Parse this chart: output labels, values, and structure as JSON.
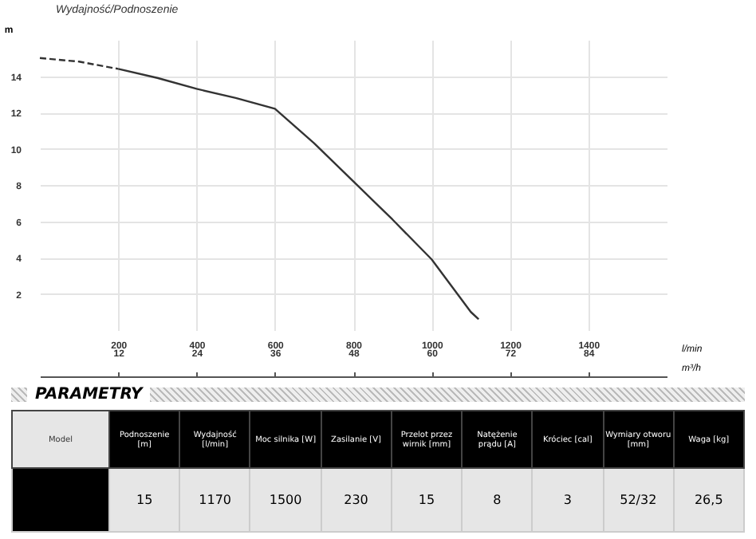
{
  "chart_data": [
    {
      "type": "line",
      "title": "Wydajność/Podnoszenie",
      "ylabel": "m",
      "xlabel": "l/min",
      "x2label": "m³/h",
      "xlim": [
        0,
        1600
      ],
      "xticks": [
        200,
        400,
        600,
        800,
        1000,
        1200,
        1400
      ],
      "x2lim": [
        0,
        96
      ],
      "x2ticks": [
        12,
        24,
        36,
        48,
        60,
        72,
        84
      ],
      "ylim": [
        0,
        16
      ],
      "yticks": [
        2,
        4,
        6,
        8,
        10,
        12,
        14
      ],
      "grid": true,
      "series": [
        {
          "color": "#333333",
          "line_style": "dashed",
          "x": [
            0,
            100,
            200
          ],
          "values": [
            15.0,
            14.8,
            14.4
          ]
        },
        {
          "color": "#333333",
          "line_style": "solid",
          "x": [
            200,
            300,
            400,
            500,
            600,
            700,
            800,
            900,
            1000,
            1100,
            1120
          ],
          "values": [
            14.4,
            13.9,
            13.3,
            12.8,
            12.2,
            10.3,
            8.2,
            6.1,
            3.9,
            1.0,
            0.6
          ]
        }
      ]
    },
    {
      "type": "other",
      "title": "PARAMETRY",
      "categories": [
        "Model",
        "Podnoszenie [m]",
        "Wydajność [l/min]",
        "Moc silnika [W]",
        "Zasilanie [V]",
        "Przelot przez wirnik [mm]",
        "Natężenie prądu [A]",
        "Króciec [cal]",
        "Wymiary otworu [mm]",
        "Waga [kg]"
      ],
      "value_labels": [
        null,
        "15",
        "1170",
        "1500",
        "230",
        "15",
        "8",
        "3",
        "52/32",
        "26,5"
      ]
    }
  ]
}
